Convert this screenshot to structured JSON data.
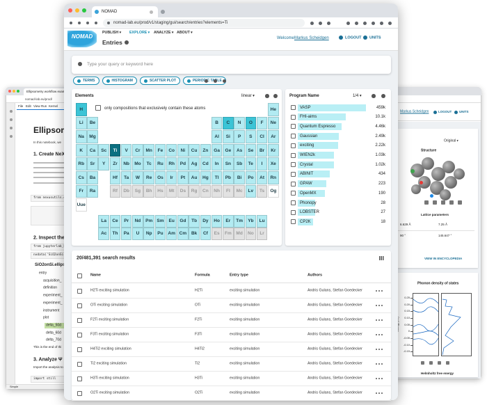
{
  "left_window": {
    "tab": "Ellipsometry workflow exam",
    "url": "nomad-lab.eu/prod/",
    "menu": [
      "File",
      "Edit",
      "View",
      "Run",
      "Kernel"
    ],
    "heading": "Ellipsometr",
    "intro": "In this notebook, we",
    "section1": "1. Create NeX",
    "code1": "from nexusutils.da",
    "section2": "2. Inspect the",
    "code2": "from jupyterlab_h5",
    "code3": "nxdata('SiO2onSi.ell",
    "tree": [
      "SiO2onSi.ellips",
      "entry",
      "acquisition_",
      "definition",
      "experiment_",
      "experiment_",
      "instrument",
      "plot",
      "delta_50d",
      "delta_60d",
      "delta_70d"
    ],
    "end_note": "This is the end of thi",
    "section3": "3. Analyze Ψ",
    "note3": "Import the analysis to",
    "code4": "import still",
    "status": "Simple"
  },
  "right_window": {
    "user": "Markus Scheidgen",
    "logout": "LOGOUT",
    "units": "UNITS",
    "view": "Original",
    "structure": "Structure",
    "lattice_title": "Lattice parameters",
    "lattice": [
      "6.629 Å",
      "7.25 Å",
      "90 °",
      "145.647 °"
    ],
    "encyclopedia": "VIEW IN ENCYCLOPEDIA",
    "phonon_title": "Phonon density of states",
    "ylabel": "Energy (eV)",
    "ylim": [
      -0.175,
      0.275
    ],
    "yticks": [
      {
        "value": 0.25,
        "label": "0.25"
      },
      {
        "value": 0.2,
        "label": "0.20"
      },
      {
        "value": 0.15,
        "label": "0.15"
      },
      {
        "value": 0.1,
        "label": "0.10"
      },
      {
        "value": 0.05,
        "label": "0.05"
      },
      0,
      {
        "value": -0.05,
        "label": "-0.05"
      },
      {
        "value": -0.1,
        "label": "-0.10"
      },
      {
        "value": -0.15,
        "label": "-0.15"
      }
    ],
    "helmholtz": "Helmholtz free energy"
  },
  "browser": {
    "tab": "NOMAD",
    "url": "nomad-lab.eu/prod/v1/staging/gui/search/entries?elements=Ti"
  },
  "header": {
    "logo": "NOMAD",
    "menu": [
      "PUBLISH",
      "EXPLORE",
      "ANALYZE",
      "ABOUT"
    ],
    "title": "Entries",
    "welcome": "Welcome",
    "user": "Markus Scheidgen",
    "logout": "LOGOUT",
    "units": "UNITS"
  },
  "search": {
    "placeholder": "Type your query or keyword here",
    "buttons": [
      "TERMS",
      "HISTOGRAM",
      "SCATTER PLOT",
      "PERIODIC TABLE"
    ]
  },
  "elements_card": {
    "title": "Elements",
    "scale": "linear",
    "exclusive": "only compositions that exclusively contain these atoms",
    "symbols": [
      "H",
      "He",
      "Li",
      "Be",
      "B",
      "C",
      "N",
      "O",
      "F",
      "Ne",
      "Na",
      "Mg",
      "Al",
      "Si",
      "P",
      "S",
      "Cl",
      "Ar",
      "K",
      "Ca",
      "Sc",
      "Ti",
      "V",
      "Cr",
      "Mn",
      "Fe",
      "Co",
      "Ni",
      "Cu",
      "Zn",
      "Ga",
      "Ge",
      "As",
      "Se",
      "Br",
      "Kr",
      "Rb",
      "Sr",
      "Y",
      "Zr",
      "Nb",
      "Mo",
      "Tc",
      "Ru",
      "Rh",
      "Pd",
      "Ag",
      "Cd",
      "In",
      "Sn",
      "Sb",
      "Te",
      "I",
      "Xe",
      "Cs",
      "Ba",
      "La",
      "Ce",
      "Pr",
      "Nd",
      "Pm",
      "Sm",
      "Eu",
      "Gd",
      "Tb",
      "Dy",
      "Ho",
      "Er",
      "Tm",
      "Yb",
      "Lu",
      "Hf",
      "Ta",
      "W",
      "Re",
      "Os",
      "Ir",
      "Pt",
      "Au",
      "Hg",
      "Tl",
      "Pb",
      "Bi",
      "Po",
      "At",
      "Rn",
      "Fr",
      "Ra",
      "Ac",
      "Th",
      "Pa",
      "U",
      "Np",
      "Pu",
      "Am",
      "Cm",
      "Bk",
      "Cf",
      "Es",
      "Fm",
      "Md",
      "No",
      "Lr",
      "Rf",
      "Db",
      "Sg",
      "Bh",
      "Hs",
      "Mt",
      "Ds",
      "Rg",
      "Cn",
      "Nh",
      "Fl",
      "Mc",
      "Lv",
      "Ts",
      "Og",
      "Uue"
    ],
    "colors": [
      "#3cc4d6",
      "#b2ebf2",
      "#b2ebf2",
      "#b2ebf2",
      "#b2ebf2",
      "#3cc4d6",
      "#b2ebf2",
      "#3cc4d6",
      "#b2ebf2",
      "#b2ebf2",
      "#b2ebf2",
      "#b2ebf2",
      "#b2ebf2",
      "#b2ebf2",
      "#b2ebf2",
      "#b2ebf2",
      "#b2ebf2",
      "#b2ebf2",
      "#b2ebf2",
      "#b2ebf2",
      "#b2ebf2",
      "#0b6f80",
      "#b2ebf2",
      "#b2ebf2",
      "#b2ebf2",
      "#b2ebf2",
      "#b2ebf2",
      "#b2ebf2",
      "#b2ebf2",
      "#b2ebf2",
      "#b2ebf2",
      "#b2ebf2",
      "#b2ebf2",
      "#b2ebf2",
      "#b2ebf2",
      "#b2ebf2",
      "#b2ebf2",
      "#b2ebf2",
      "#b2ebf2",
      "#b2ebf2",
      "#b2ebf2",
      "#b2ebf2",
      "#b2ebf2",
      "#b2ebf2",
      "#b2ebf2",
      "#b2ebf2",
      "#b2ebf2",
      "#b2ebf2",
      "#b2ebf2",
      "#b2ebf2",
      "#b2ebf2",
      "#b2ebf2",
      "#b2ebf2",
      "#b2ebf2",
      "#b2ebf2",
      "#b2ebf2",
      "#b2ebf2",
      "#b2ebf2",
      "#b2ebf2",
      "#b2ebf2",
      "#b2ebf2",
      "#b2ebf2",
      "#b2ebf2",
      "#b2ebf2",
      "#b2ebf2",
      "#b2ebf2",
      "#b2ebf2",
      "#b2ebf2",
      "#b2ebf2",
      "#b2ebf2",
      "#b2ebf2",
      "#b2ebf2",
      "#b2ebf2",
      "#b2ebf2",
      "#b2ebf2",
      "#b2ebf2",
      "#b2ebf2",
      "#b2ebf2",
      "#b2ebf2",
      "#b2ebf2",
      "#b2ebf2",
      "#b2ebf2",
      "#b2ebf2",
      "#b2ebf2",
      "#b2ebf2",
      "#b2ebf2",
      "#b2ebf2",
      "#b2ebf2",
      "#b2ebf2",
      "#b2ebf2",
      "#b2ebf2",
      "#b2ebf2",
      "#b2ebf2",
      "#b2ebf2",
      "#b2ebf2",
      "#b2ebf2",
      "#b2ebf2",
      "#b2ebf2",
      "#e2e2e2",
      "#e2e2e2",
      "#e2e2e2",
      "#e2e2e2",
      "#e2e2e2",
      "#e2e2e2",
      "#e2e2e2",
      "#e2e2e2",
      "#e2e2e2",
      "#e2e2e2",
      "#e2e2e2",
      "#e2e2e2",
      "#e2e2e2",
      "#e2e2e2",
      "#e2e2e2",
      "#e2e2e2",
      "#e2e2e2",
      "#b2ebf2",
      "#e2e2e2"
    ]
  },
  "program_card": {
    "title": "Program Name",
    "page": "1/4",
    "scale": "log",
    "color": "#b9eff5",
    "names": [
      "VASP",
      "FHI-aims",
      "Quantum Espresso",
      "Gaussian",
      "exciting",
      "WIEN2k",
      "Crystal",
      "ABINIT",
      "GPAW",
      "OpenMX",
      "Phonopy",
      "LOBSTER",
      "CP2K"
    ],
    "values": [
      459000,
      10100,
      4460,
      2490,
      2220,
      1030,
      1020,
      434,
      223,
      190,
      28,
      27,
      18
    ],
    "value_labels": [
      "459k",
      "10.1k",
      "4.46k",
      "2.49k",
      "2.22k",
      "1.03k",
      "1.02k",
      "434",
      "223",
      "190",
      "28",
      "27",
      "18"
    ]
  },
  "results": {
    "title": "20/481,391 search results",
    "columns": [
      "Name",
      "Formula",
      "Entry type",
      "Authors"
    ],
    "rows": [
      [
        "H2Ti exciting simulation",
        "H2Ti",
        "exciting simulation",
        "Andris Gulans, Stefan Goedecker"
      ],
      [
        "OTi exciting simulation",
        "OTi",
        "exciting simulation",
        "Andris Gulans, Stefan Goedecker"
      ],
      [
        "F2Ti exciting simulation",
        "F2Ti",
        "exciting simulation",
        "Andris Gulans, Stefan Goedecker"
      ],
      [
        "F3Ti exciting simulation",
        "F3Ti",
        "exciting simulation",
        "Andris Gulans, Stefan Goedecker"
      ],
      [
        "H4Ti2 exciting simulation",
        "H4Ti2",
        "exciting simulation",
        "Andris Gulans, Stefan Goedecker"
      ],
      [
        "Ti2 exciting simulation",
        "Ti2",
        "exciting simulation",
        "Andris Gulans, Stefan Goedecker"
      ],
      [
        "H3Ti exciting simulation",
        "H3Ti",
        "exciting simulation",
        "Andris Gulans, Stefan Goedecker"
      ],
      [
        "O2Ti exciting simulation",
        "O2Ti",
        "exciting simulation",
        "Andris Gulans, Stefan Goedecker"
      ]
    ]
  }
}
